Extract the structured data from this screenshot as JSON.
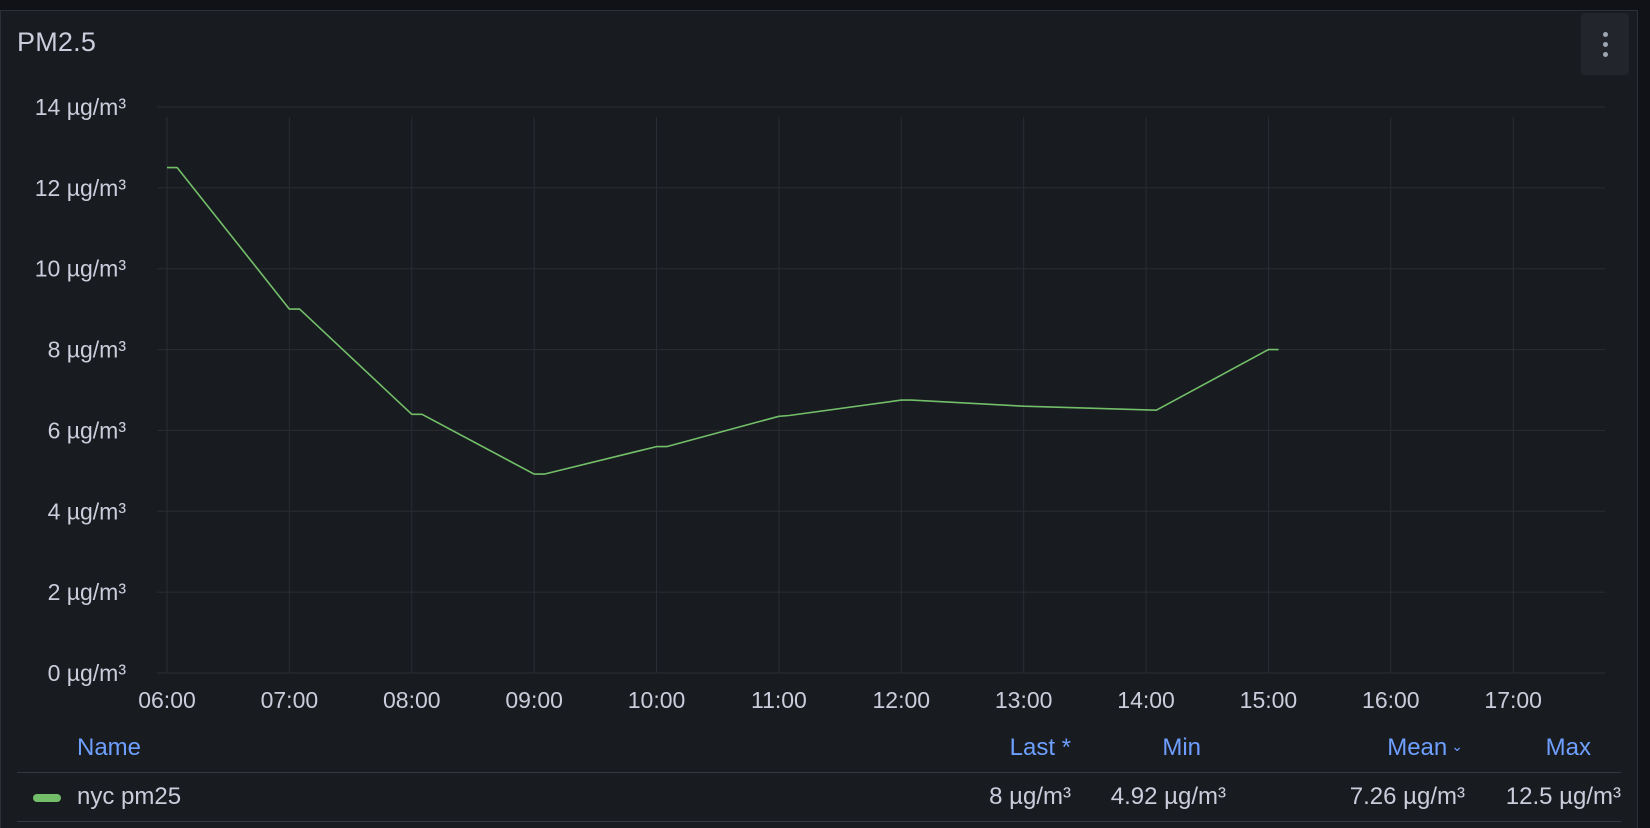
{
  "panel": {
    "title": "PM2.5"
  },
  "chart_data": {
    "type": "line",
    "title": "PM2.5",
    "unit": "µg/m³",
    "ylim": [
      0,
      14
    ],
    "y_ticks": [
      0,
      2,
      4,
      6,
      8,
      10,
      12,
      14
    ],
    "y_tick_labels": [
      "0 µg/m³",
      "2 µg/m³",
      "4 µg/m³",
      "6 µg/m³",
      "8 µg/m³",
      "10 µg/m³",
      "12 µg/m³",
      "14 µg/m³"
    ],
    "x_tick_labels": [
      "06:00",
      "07:00",
      "08:00",
      "09:00",
      "10:00",
      "11:00",
      "12:00",
      "13:00",
      "14:00",
      "15:00",
      "16:00",
      "17:00"
    ],
    "x_range": [
      "06:00",
      "17:45"
    ],
    "grid": true,
    "legend_placement": "bottom",
    "series": [
      {
        "name": "nyc pm25",
        "color": "#73bf69",
        "points": [
          {
            "t": "06:00",
            "v": 12.5
          },
          {
            "t": "06:05",
            "v": 12.5
          },
          {
            "t": "07:00",
            "v": 9.0
          },
          {
            "t": "07:05",
            "v": 9.0
          },
          {
            "t": "08:00",
            "v": 6.4
          },
          {
            "t": "08:05",
            "v": 6.4
          },
          {
            "t": "09:00",
            "v": 4.92
          },
          {
            "t": "09:05",
            "v": 4.92
          },
          {
            "t": "10:00",
            "v": 5.6
          },
          {
            "t": "10:05",
            "v": 5.6
          },
          {
            "t": "11:00",
            "v": 6.35
          },
          {
            "t": "11:05",
            "v": 6.37
          },
          {
            "t": "12:00",
            "v": 6.75
          },
          {
            "t": "12:05",
            "v": 6.75
          },
          {
            "t": "13:00",
            "v": 6.6
          },
          {
            "t": "14:05",
            "v": 6.5
          },
          {
            "t": "15:00",
            "v": 8.0
          },
          {
            "t": "15:05",
            "v": 8.0
          }
        ]
      }
    ]
  },
  "legend": {
    "headers": {
      "name": "Name",
      "last": "Last *",
      "min": "Min",
      "mean": "Mean",
      "max": "Max"
    },
    "sort_indicator": "chevron-down",
    "rows": [
      {
        "name": "nyc pm25",
        "color": "#73bf69",
        "last": "8 µg/m³",
        "min": "4.92 µg/m³",
        "mean": "7.26 µg/m³",
        "max": "12.5 µg/m³"
      }
    ]
  }
}
